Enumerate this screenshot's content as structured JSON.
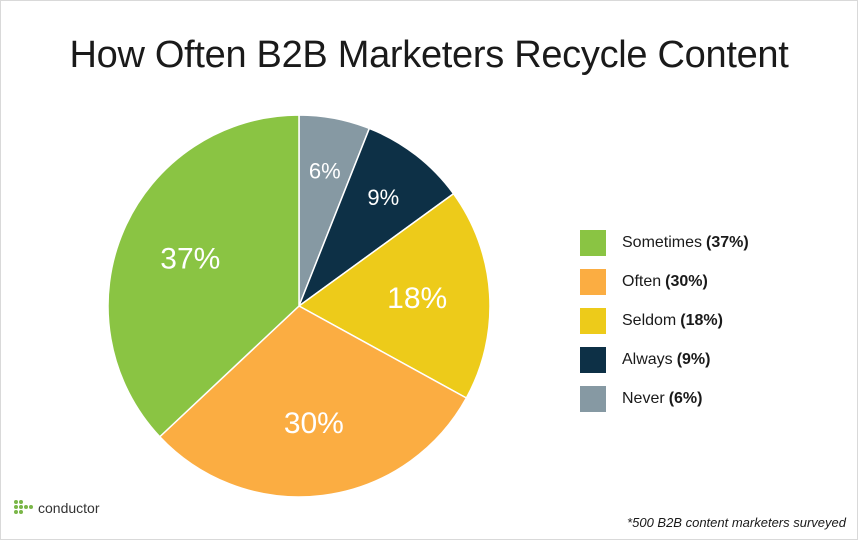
{
  "title": "How Often B2B Marketers Recycle Content",
  "footnote": "*500 B2B content marketers surveyed",
  "logo_text": "conductor",
  "chart_data": {
    "type": "pie",
    "title": "How Often B2B Marketers Recycle Content",
    "slices": [
      {
        "label": "Never",
        "value": 6,
        "pct_label": "6%",
        "color": "#8699a3"
      },
      {
        "label": "Always",
        "value": 9,
        "pct_label": "9%",
        "color": "#0d3046"
      },
      {
        "label": "Seldom",
        "value": 18,
        "pct_label": "18%",
        "color": "#edcb1a"
      },
      {
        "label": "Often",
        "value": 30,
        "pct_label": "30%",
        "color": "#fbad42"
      },
      {
        "label": "Sometimes",
        "value": 37,
        "pct_label": "37%",
        "color": "#8ac443"
      }
    ],
    "legend": {
      "placement": "right",
      "items": [
        {
          "label": "Sometimes",
          "pct": "(37%)",
          "color": "#8ac443"
        },
        {
          "label": "Often",
          "pct": "(30%)",
          "color": "#fbad42"
        },
        {
          "label": "Seldom",
          "pct": "(18%)",
          "color": "#edcb1a"
        },
        {
          "label": "Always",
          "pct": "(9%)",
          "color": "#0d3046"
        },
        {
          "label": "Never",
          "pct": "(6%)",
          "color": "#8699a3"
        }
      ]
    }
  }
}
